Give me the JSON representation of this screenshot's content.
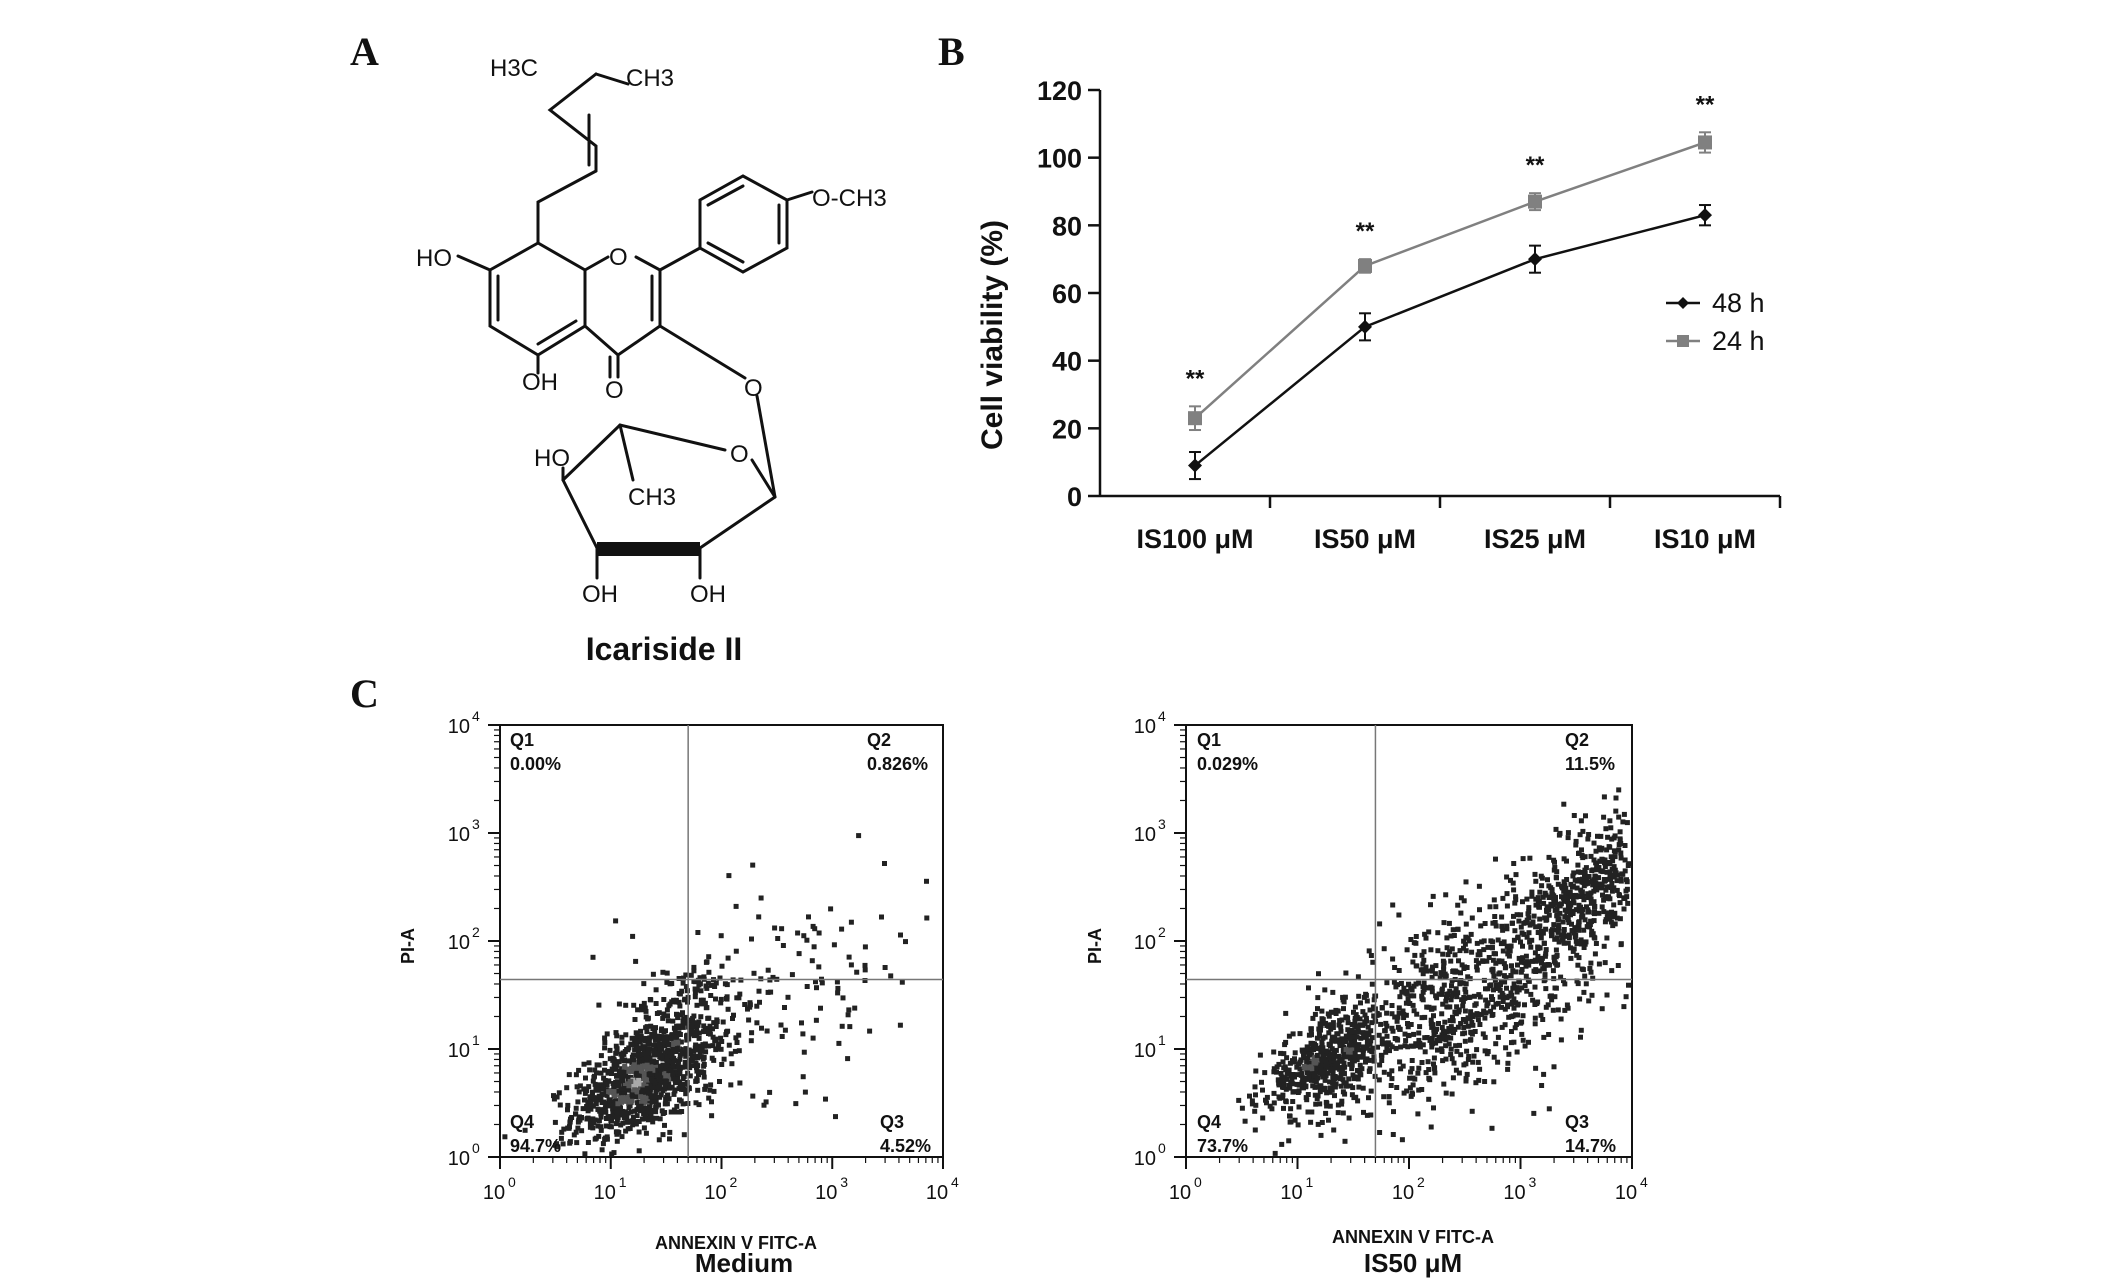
{
  "panels": {
    "a": "A",
    "b": "B",
    "c": "C"
  },
  "structure": {
    "compound_name": "Icariside II",
    "groups": {
      "h3c": "H3C",
      "ch3": "CH3",
      "och3": "O-CH3",
      "ho_left": "HO",
      "oh_bottom": "OH",
      "ring_o": "O",
      "carbonyl_o": "O",
      "link_o": "O",
      "sugar_o": "O",
      "sugar_ho": "HO",
      "sugar_ch3": "CH3",
      "sugar_oh1": "OH",
      "sugar_oh2": "OH"
    }
  },
  "chart_data": [
    {
      "type": "line",
      "categories": [
        "IS100 μM",
        "IS50 μM",
        "IS25 μM",
        "IS10 μM"
      ],
      "ylabel": "Cell viability (%)",
      "ylim": [
        0,
        120
      ],
      "yticks": [
        0,
        20,
        40,
        60,
        80,
        100,
        120
      ],
      "legend_position": "right",
      "series": [
        {
          "name": "48 h",
          "marker": "diamond",
          "color": "#111111",
          "values": [
            9,
            50,
            70,
            83
          ],
          "errors": [
            4,
            4,
            4,
            3
          ]
        },
        {
          "name": "24 h",
          "marker": "square",
          "color": "#808080",
          "values": [
            23,
            68,
            87,
            104.5
          ],
          "errors": [
            3.5,
            2,
            2.5,
            3
          ]
        }
      ],
      "annotations": [
        "**",
        "**",
        "**",
        "**"
      ]
    },
    {
      "type": "scatter",
      "title": "Medium",
      "xlabel": "ANNEXIN V FITC-A",
      "ylabel": "PI-A",
      "scale": "log",
      "xlim": [
        1,
        10000
      ],
      "ylim": [
        1,
        10000
      ],
      "gate": {
        "x": 50,
        "y": 44
      },
      "quadrants": [
        {
          "label": "Q1",
          "value": "0.00%"
        },
        {
          "label": "Q2",
          "value": "0.826%"
        },
        {
          "label": "Q3",
          "value": "4.52%"
        },
        {
          "label": "Q4",
          "value": "94.7%"
        }
      ],
      "populations": [
        {
          "cx": 18,
          "cy": 5,
          "sx": 0.3,
          "sy": 0.28,
          "rho": 0.55,
          "n": 900
        },
        {
          "cx": 45,
          "cy": 12,
          "sx": 0.3,
          "sy": 0.4,
          "rho": 0.45,
          "n": 250
        },
        {
          "cx": 300,
          "cy": 40,
          "sx": 0.7,
          "sy": 0.5,
          "rho": 0.2,
          "n": 160
        }
      ]
    },
    {
      "type": "scatter",
      "title": "IS50 μM",
      "xlabel": "ANNEXIN V FITC-A",
      "ylabel": "PI-A",
      "scale": "log",
      "xlim": [
        1,
        10000
      ],
      "ylim": [
        1,
        10000
      ],
      "gate": {
        "x": 50,
        "y": 44
      },
      "quadrants": [
        {
          "label": "Q1",
          "value": "0.029%"
        },
        {
          "label": "Q2",
          "value": "11.5%"
        },
        {
          "label": "Q3",
          "value": "14.7%"
        },
        {
          "label": "Q4",
          "value": "73.7%"
        }
      ],
      "populations": [
        {
          "cx": 18,
          "cy": 8,
          "sx": 0.28,
          "sy": 0.25,
          "rho": 0.6,
          "n": 500
        },
        {
          "cx": 300,
          "cy": 30,
          "sx": 0.65,
          "sy": 0.55,
          "rho": 0.6,
          "n": 900
        },
        {
          "cx": 4000,
          "cy": 300,
          "sx": 0.3,
          "sy": 0.35,
          "rho": 0.5,
          "n": 450
        }
      ]
    }
  ]
}
